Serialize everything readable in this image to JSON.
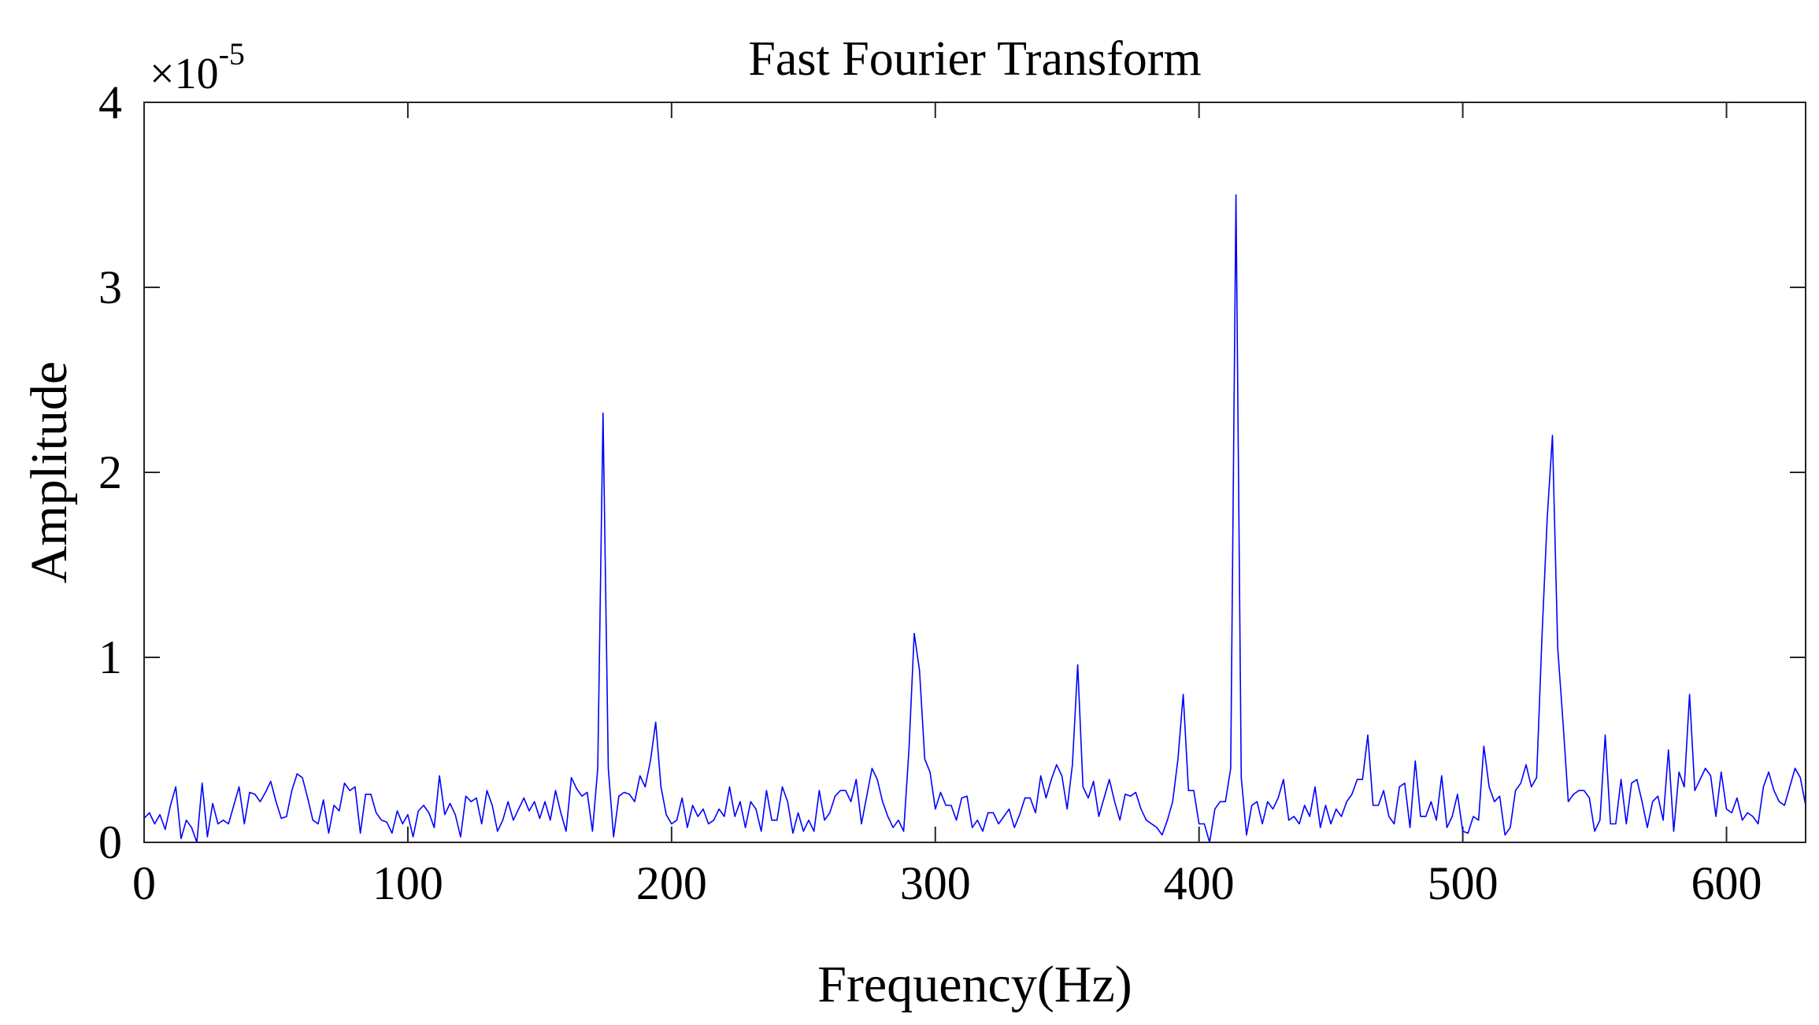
{
  "chart_data": {
    "type": "line",
    "title": "Fast Fourier Transform",
    "xlabel": "Frequency(Hz)",
    "ylabel": "Amplitude",
    "y_multiplier": "×10",
    "y_multiplier_exponent": "-5",
    "xlim": [
      0,
      630
    ],
    "ylim": [
      0,
      4
    ],
    "x_ticks": [
      0,
      100,
      200,
      300,
      400,
      500,
      600
    ],
    "y_ticks": [
      0,
      1,
      2,
      3,
      4
    ],
    "grid": false,
    "line_color": "#0000ff",
    "series": [
      {
        "x": [
          0,
          2,
          4,
          6,
          8,
          10,
          12,
          14,
          16,
          18,
          20,
          22,
          24,
          26,
          28,
          30,
          32,
          34,
          36,
          38,
          40,
          42,
          44,
          46,
          48,
          50,
          52,
          54,
          56,
          58,
          60,
          62,
          64,
          66,
          68,
          70,
          72,
          74,
          76,
          78,
          80,
          82,
          84,
          86,
          88,
          90,
          92,
          94,
          96,
          98,
          100,
          102,
          104,
          106,
          108,
          110,
          112,
          114,
          116,
          118,
          120,
          122,
          124,
          126,
          128,
          130,
          132,
          134,
          136,
          138,
          140,
          142,
          144,
          146,
          148,
          150,
          152,
          154,
          156,
          158,
          160,
          162,
          164,
          166,
          168,
          170,
          172,
          174,
          176,
          178,
          180,
          182,
          184,
          186,
          188,
          190,
          192,
          194,
          196,
          198,
          200,
          202,
          204,
          206,
          208,
          210,
          212,
          214,
          216,
          218,
          220,
          222,
          224,
          226,
          228,
          230,
          232,
          234,
          236,
          238,
          240,
          242,
          244,
          246,
          248,
          250,
          252,
          254,
          256,
          258,
          260,
          262,
          264,
          266,
          268,
          270,
          272,
          274,
          276,
          278,
          280,
          282,
          284,
          286,
          288,
          290,
          292,
          294,
          296,
          298,
          300,
          302,
          304,
          306,
          308,
          310,
          312,
          314,
          316,
          318,
          320,
          322,
          324,
          326,
          328,
          330,
          332,
          334,
          336,
          338,
          340,
          342,
          344,
          346,
          348,
          350,
          352,
          354,
          356,
          358,
          360,
          362,
          364,
          366,
          368,
          370,
          372,
          374,
          376,
          378,
          380,
          382,
          384,
          386,
          388,
          390,
          392,
          394,
          396,
          398,
          400,
          402,
          404,
          406,
          408,
          410,
          412,
          414,
          416,
          418,
          420,
          422,
          424,
          426,
          428,
          430,
          432,
          434,
          436,
          438,
          440,
          442,
          444,
          446,
          448,
          450,
          452,
          454,
          456,
          458,
          460,
          462,
          464,
          466,
          468,
          470,
          472,
          474,
          476,
          478,
          480,
          482,
          484,
          486,
          488,
          490,
          492,
          494,
          496,
          498,
          500,
          502,
          504,
          506,
          508,
          510,
          512,
          514,
          516,
          518,
          520,
          522,
          524,
          526,
          528,
          530,
          532,
          534,
          536,
          538,
          540,
          542,
          544,
          546,
          548,
          550,
          552,
          554,
          556,
          558,
          560,
          562,
          564,
          566,
          568,
          570,
          572,
          574,
          576,
          578,
          580,
          582,
          584,
          586,
          588,
          590,
          592,
          594,
          596,
          598,
          600,
          602,
          604,
          606,
          608,
          610,
          612,
          614,
          616,
          618,
          620,
          622,
          624,
          626,
          628,
          630
        ],
        "y": [
          0.13,
          0.16,
          0.1,
          0.15,
          0.07,
          0.2,
          0.3,
          0.02,
          0.12,
          0.08,
          0.0,
          0.32,
          0.03,
          0.21,
          0.1,
          0.12,
          0.1,
          0.2,
          0.3,
          0.1,
          0.27,
          0.26,
          0.22,
          0.27,
          0.33,
          0.22,
          0.13,
          0.14,
          0.28,
          0.37,
          0.35,
          0.24,
          0.12,
          0.1,
          0.23,
          0.05,
          0.2,
          0.17,
          0.32,
          0.28,
          0.3,
          0.05,
          0.26,
          0.26,
          0.16,
          0.12,
          0.11,
          0.05,
          0.17,
          0.1,
          0.15,
          0.03,
          0.17,
          0.2,
          0.16,
          0.08,
          0.36,
          0.15,
          0.21,
          0.15,
          0.03,
          0.25,
          0.22,
          0.24,
          0.1,
          0.28,
          0.2,
          0.06,
          0.12,
          0.22,
          0.12,
          0.18,
          0.24,
          0.17,
          0.22,
          0.13,
          0.22,
          0.12,
          0.28,
          0.16,
          0.06,
          0.35,
          0.29,
          0.25,
          0.27,
          0.06,
          0.4,
          2.32,
          0.4,
          0.03,
          0.25,
          0.27,
          0.26,
          0.22,
          0.36,
          0.3,
          0.44,
          0.65,
          0.3,
          0.15,
          0.1,
          0.12,
          0.24,
          0.08,
          0.2,
          0.14,
          0.18,
          0.1,
          0.12,
          0.18,
          0.14,
          0.3,
          0.14,
          0.22,
          0.08,
          0.22,
          0.18,
          0.06,
          0.28,
          0.12,
          0.12,
          0.3,
          0.22,
          0.05,
          0.16,
          0.06,
          0.12,
          0.06,
          0.28,
          0.12,
          0.16,
          0.25,
          0.28,
          0.28,
          0.22,
          0.34,
          0.1,
          0.25,
          0.4,
          0.34,
          0.22,
          0.14,
          0.08,
          0.12,
          0.06,
          0.5,
          1.13,
          0.93,
          0.45,
          0.38,
          0.18,
          0.27,
          0.2,
          0.2,
          0.12,
          0.24,
          0.25,
          0.08,
          0.12,
          0.06,
          0.16,
          0.16,
          0.1,
          0.14,
          0.18,
          0.08,
          0.15,
          0.24,
          0.24,
          0.16,
          0.36,
          0.24,
          0.34,
          0.42,
          0.36,
          0.18,
          0.42,
          0.96,
          0.3,
          0.24,
          0.33,
          0.14,
          0.24,
          0.34,
          0.22,
          0.12,
          0.26,
          0.25,
          0.27,
          0.18,
          0.12,
          0.1,
          0.08,
          0.04,
          0.12,
          0.22,
          0.45,
          0.8,
          0.28,
          0.28,
          0.1,
          0.1,
          0.0,
          0.18,
          0.22,
          0.22,
          0.4,
          3.5,
          0.35,
          0.04,
          0.2,
          0.22,
          0.1,
          0.22,
          0.18,
          0.24,
          0.34,
          0.12,
          0.14,
          0.1,
          0.2,
          0.14,
          0.3,
          0.08,
          0.2,
          0.1,
          0.18,
          0.14,
          0.22,
          0.26,
          0.34,
          0.34,
          0.58,
          0.2,
          0.2,
          0.28,
          0.14,
          0.1,
          0.3,
          0.32,
          0.08,
          0.44,
          0.14,
          0.14,
          0.22,
          0.12,
          0.36,
          0.08,
          0.14,
          0.26,
          0.06,
          0.05,
          0.14,
          0.12,
          0.52,
          0.3,
          0.22,
          0.25,
          0.04,
          0.08,
          0.28,
          0.32,
          0.42,
          0.3,
          0.35,
          1.1,
          1.75,
          2.2,
          1.05,
          0.65,
          0.22,
          0.26,
          0.28,
          0.28,
          0.24,
          0.06,
          0.12,
          0.58,
          0.1,
          0.1,
          0.34,
          0.1,
          0.32,
          0.34,
          0.22,
          0.08,
          0.22,
          0.25,
          0.12,
          0.5,
          0.06,
          0.38,
          0.3,
          0.8,
          0.28,
          0.34,
          0.4,
          0.36,
          0.14,
          0.38,
          0.18,
          0.16,
          0.24,
          0.12,
          0.16,
          0.14,
          0.1,
          0.3,
          0.38,
          0.28,
          0.22,
          0.2,
          0.3,
          0.4,
          0.35,
          0.2
        ]
      }
    ]
  }
}
